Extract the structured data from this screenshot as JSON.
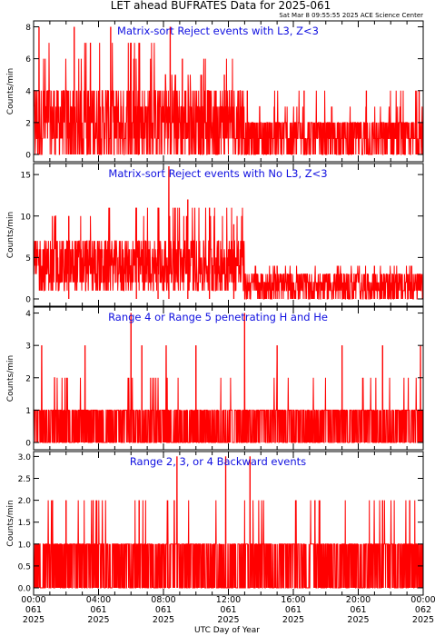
{
  "header": {
    "title": "LET ahead BUFRATES Data for 2025-061",
    "timestamp": "Sat Mar  8 09:55:55 2025 ACE Science Center"
  },
  "chart_data": [
    {
      "type": "line",
      "title": "Matrix-sort Reject events with L3, Z<3",
      "ylabel": "Counts/min",
      "ylim": [
        0,
        8.2
      ],
      "yticks": [
        0,
        2,
        4,
        6,
        8
      ],
      "ytick_labels": [
        "0",
        "2",
        "4",
        "6",
        "8"
      ],
      "color": "#ff0000",
      "segments": [
        {
          "x_range": [
            "00:00",
            "08:00"
          ],
          "typical_low": 0,
          "typical_high": 4,
          "peaks_to": 7
        },
        {
          "x_range": [
            "08:00",
            "13:00"
          ],
          "typical_low": 0,
          "typical_high": 4,
          "peaks_to": 6
        },
        {
          "x_range": [
            "13:00",
            "24:00"
          ],
          "typical_low": 0,
          "typical_high": 2,
          "peaks_to": 4
        }
      ],
      "spikes": [
        {
          "x": "00:20",
          "y": 8
        },
        {
          "x": "02:30",
          "y": 8
        },
        {
          "x": "03:30",
          "y": 7
        },
        {
          "x": "04:45",
          "y": 8
        },
        {
          "x": "06:00",
          "y": 7
        },
        {
          "x": "08:25",
          "y": 8
        },
        {
          "x": "09:10",
          "y": 6
        },
        {
          "x": "11:45",
          "y": 5
        },
        {
          "x": "13:10",
          "y": 4
        },
        {
          "x": "16:40",
          "y": 4
        },
        {
          "x": "20:30",
          "y": 4
        },
        {
          "x": "23:45",
          "y": 4
        }
      ]
    },
    {
      "type": "line",
      "title": "Matrix-sort Reject events with No L3, Z<3",
      "ylabel": "Counts/min",
      "ylim": [
        0,
        16
      ],
      "yticks": [
        0,
        5,
        10,
        15
      ],
      "ytick_labels": [
        "0",
        "5",
        "10",
        "15"
      ],
      "color": "#ff0000",
      "segments": [
        {
          "x_range": [
            "00:00",
            "13:00"
          ],
          "typical_low": 1,
          "typical_high": 7,
          "peaks_to": 11
        },
        {
          "x_range": [
            "13:00",
            "24:00"
          ],
          "typical_low": 0,
          "typical_high": 3,
          "peaks_to": 4
        }
      ],
      "spikes": [
        {
          "x": "02:10",
          "y": 10
        },
        {
          "x": "06:20",
          "y": 11
        },
        {
          "x": "07:40",
          "y": 11
        },
        {
          "x": "08:20",
          "y": 16
        },
        {
          "x": "09:30",
          "y": 12
        },
        {
          "x": "10:50",
          "y": 11
        },
        {
          "x": "12:20",
          "y": 9
        },
        {
          "x": "15:00",
          "y": 4
        },
        {
          "x": "21:00",
          "y": 4
        }
      ]
    },
    {
      "type": "line",
      "title": "Range 4 or Range 5 penetrating H and He",
      "ylabel": "Counts/min",
      "ylim": [
        0,
        4.1
      ],
      "yticks": [
        0,
        1,
        2,
        3,
        4
      ],
      "ytick_labels": [
        "0",
        "1",
        "2",
        "3",
        "4"
      ],
      "color": "#ff0000",
      "segments": [
        {
          "x_range": [
            "00:00",
            "24:00"
          ],
          "typical_low": 0,
          "typical_high": 1,
          "peaks_to": 2
        }
      ],
      "spikes": [
        {
          "x": "00:30",
          "y": 3
        },
        {
          "x": "03:10",
          "y": 3
        },
        {
          "x": "06:00",
          "y": 4
        },
        {
          "x": "06:40",
          "y": 3
        },
        {
          "x": "08:10",
          "y": 3
        },
        {
          "x": "10:00",
          "y": 3
        },
        {
          "x": "13:00",
          "y": 4
        },
        {
          "x": "15:00",
          "y": 3
        },
        {
          "x": "19:00",
          "y": 3
        },
        {
          "x": "21:30",
          "y": 3
        },
        {
          "x": "23:50",
          "y": 3
        }
      ]
    },
    {
      "type": "line",
      "title": "Range 2, 3, or 4 Backward events",
      "ylabel": "Counts/min",
      "ylim": [
        0,
        3.05
      ],
      "yticks": [
        0,
        0.5,
        1,
        1.5,
        2,
        2.5,
        3
      ],
      "ytick_labels": [
        "0.0",
        "0.5",
        "1.0",
        "1.5",
        "2.0",
        "2.5",
        "3.0"
      ],
      "color": "#ff0000",
      "segments": [
        {
          "x_range": [
            "00:00",
            "24:00"
          ],
          "typical_low": 0,
          "typical_high": 1,
          "peaks_to": 2
        }
      ],
      "spikes": [
        {
          "x": "01:10",
          "y": 2
        },
        {
          "x": "02:00",
          "y": 2
        },
        {
          "x": "03:40",
          "y": 2
        },
        {
          "x": "06:30",
          "y": 2
        },
        {
          "x": "08:40",
          "y": 2
        },
        {
          "x": "08:50",
          "y": 3
        },
        {
          "x": "11:50",
          "y": 3
        },
        {
          "x": "13:20",
          "y": 3
        },
        {
          "x": "16:10",
          "y": 2
        },
        {
          "x": "17:20",
          "y": 2
        },
        {
          "x": "21:30",
          "y": 2
        },
        {
          "x": "23:10",
          "y": 2
        }
      ]
    }
  ],
  "xaxis": {
    "label": "UTC Day of Year",
    "ticks": [
      {
        "time": "00:00",
        "doy": "061",
        "year": "2025"
      },
      {
        "time": "04:00",
        "doy": "061",
        "year": "2025"
      },
      {
        "time": "08:00",
        "doy": "061",
        "year": "2025"
      },
      {
        "time": "12:00",
        "doy": "061",
        "year": "2025"
      },
      {
        "time": "16:00",
        "doy": "061",
        "year": "2025"
      },
      {
        "time": "20:00",
        "doy": "061",
        "year": "2025"
      },
      {
        "time": "00:00",
        "doy": "062",
        "year": "2025"
      }
    ]
  }
}
